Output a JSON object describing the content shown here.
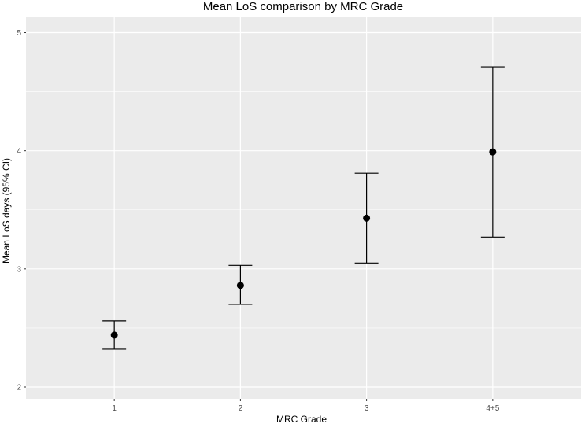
{
  "chart_data": {
    "type": "scatter",
    "title": "Mean LoS comparison by MRC Grade",
    "xlabel": "MRC Grade",
    "ylabel": "Mean LoS days (95% CI)",
    "categories": [
      "1",
      "2",
      "3",
      "4+5"
    ],
    "series": [
      {
        "values": [
          2.44,
          2.86,
          3.43,
          3.99
        ],
        "ci_lower": [
          2.32,
          2.7,
          3.05,
          3.27
        ],
        "ci_upper": [
          2.56,
          3.03,
          3.81,
          4.71
        ]
      }
    ],
    "ylim": [
      1.9,
      5.13
    ],
    "yticks": [
      2,
      3,
      4,
      5
    ],
    "ytick_labels": [
      "2",
      "3",
      "4",
      "5"
    ],
    "grid": true,
    "colors": {
      "panel": "#ebebeb",
      "grid": "#ffffff",
      "point": "#000000",
      "errorbar": "#000000"
    }
  }
}
